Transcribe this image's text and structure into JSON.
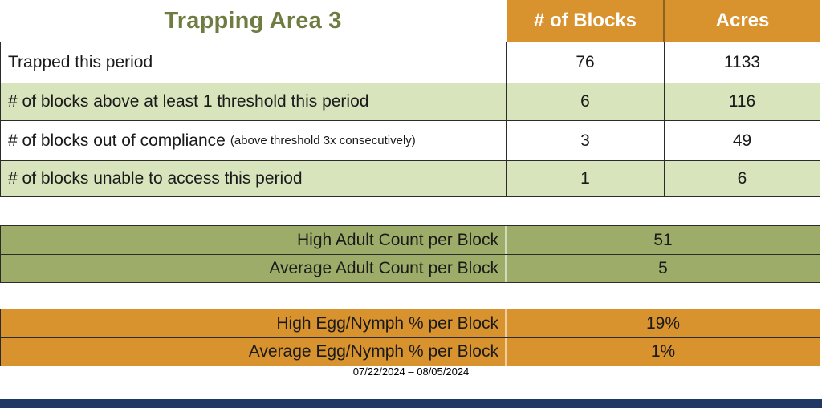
{
  "title": "Trapping Area 3",
  "columns": {
    "blocks": "# of Blocks",
    "acres": "Acres"
  },
  "summary_table": {
    "rows": [
      {
        "label": "Trapped this period",
        "note": "",
        "blocks": 76,
        "acres": 1133
      },
      {
        "label": "# of blocks above at least 1 threshold this period",
        "note": "",
        "blocks": 6,
        "acres": 116
      },
      {
        "label": "# of blocks out of compliance",
        "note": "(above threshold 3x consecutively)",
        "blocks": 3,
        "acres": 49
      },
      {
        "label": "# of blocks unable to access this period",
        "note": "",
        "blocks": 1,
        "acres": 6
      }
    ]
  },
  "adult_section": {
    "rows": [
      {
        "label": "High Adult Count per Block",
        "value": 51
      },
      {
        "label": "Average Adult Count per Block",
        "value": 5
      }
    ]
  },
  "egg_section": {
    "rows": [
      {
        "label": "High Egg/Nymph % per Block",
        "value": "19%"
      },
      {
        "label": "Average Egg/Nymph % per Block",
        "value": "1%"
      }
    ]
  },
  "date_range": "07/22/2024 – 08/05/2024",
  "colors": {
    "header_orange": "#D8922E",
    "olive_green": "#9DAD69",
    "light_green": "#D8E4BC",
    "title_green": "#6E7B41",
    "bottom_bar_navy": "#1F3864"
  }
}
